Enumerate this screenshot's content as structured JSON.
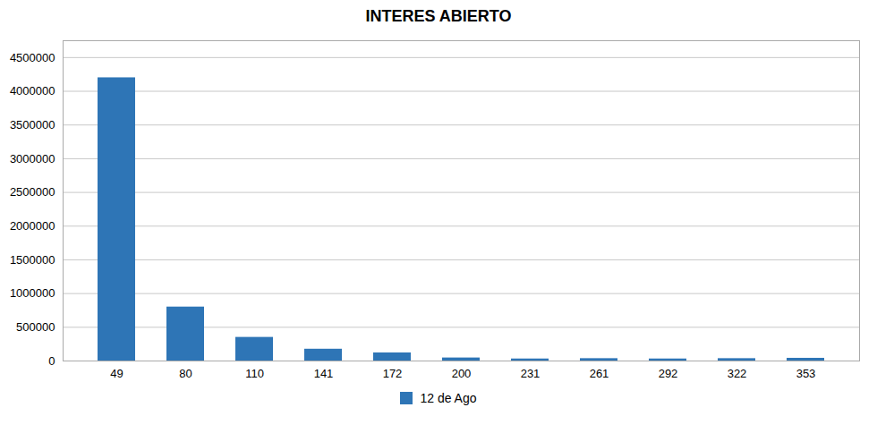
{
  "chart_data": {
    "type": "bar",
    "title": "INTERES ABIERTO",
    "categories": [
      "49",
      "80",
      "110",
      "141",
      "172",
      "200",
      "231",
      "261",
      "292",
      "322",
      "353"
    ],
    "series": [
      {
        "name": "12 de Ago",
        "color": "#2E75B6",
        "values": [
          4200000,
          800000,
          350000,
          175000,
          120000,
          45000,
          30000,
          35000,
          30000,
          35000,
          40000
        ]
      }
    ],
    "ylim": [
      0,
      4750000
    ],
    "yticks": [
      0,
      500000,
      1000000,
      1500000,
      2000000,
      2500000,
      3000000,
      3500000,
      4000000,
      4500000
    ],
    "grid": true,
    "legend": "bottom"
  }
}
